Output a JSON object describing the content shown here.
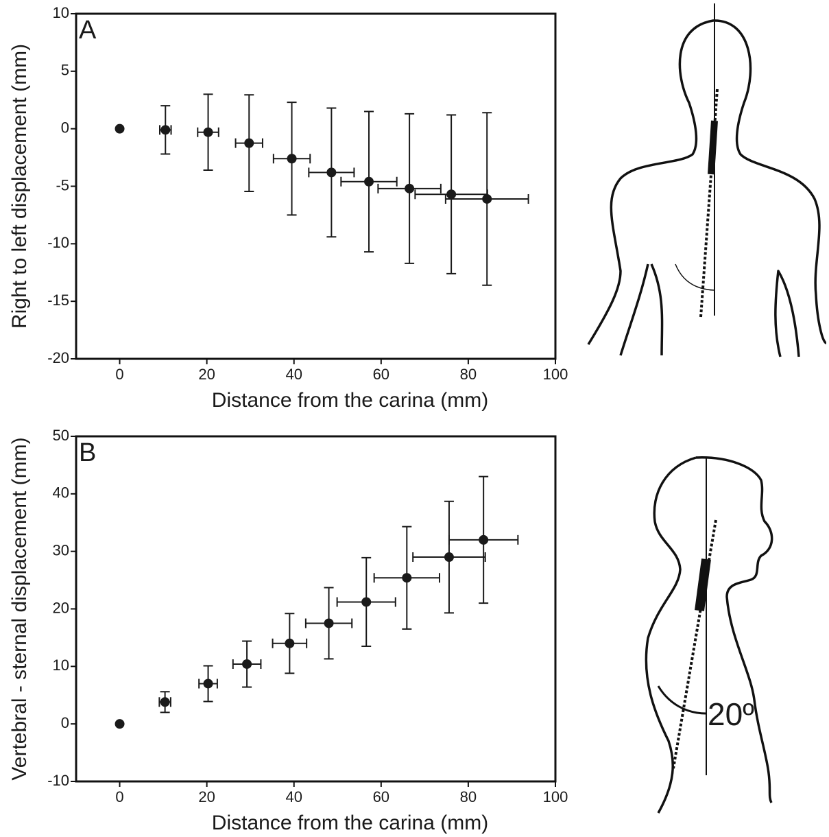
{
  "chart_data": [
    {
      "type": "scatter",
      "panel_label": "A",
      "xlabel": "Distance from the carina (mm)",
      "ylabel": "Right to left displacement (mm)",
      "xlim": [
        -10,
        100
      ],
      "ylim": [
        -20,
        10
      ],
      "xticks": [
        0,
        20,
        40,
        60,
        80,
        100
      ],
      "yticks": [
        -20,
        -15,
        -10,
        -5,
        0,
        5,
        10
      ],
      "color": "#1a1a1a",
      "x": [
        0,
        10.5,
        20.3,
        29.7,
        39.5,
        48.6,
        57.2,
        66.5,
        76.1,
        84.3
      ],
      "values": [
        0,
        -0.1,
        -0.3,
        -1.25,
        -2.6,
        -3.8,
        -4.6,
        -5.2,
        -5.7,
        -6.1
      ],
      "xerr": [
        null,
        1.3,
        2.4,
        3.1,
        4.2,
        5.2,
        6.4,
        7.2,
        8.3,
        9.5
      ],
      "yerr": [
        null,
        2.1,
        3.3,
        4.2,
        4.9,
        5.6,
        6.1,
        6.5,
        6.9,
        7.5
      ]
    },
    {
      "type": "scatter",
      "panel_label": "B",
      "xlabel": "Distance from the carina (mm)",
      "ylabel": "Vertebral - sternal displacement (mm)",
      "xlim": [
        -10,
        100
      ],
      "ylim": [
        -10,
        50
      ],
      "xticks": [
        0,
        20,
        40,
        60,
        80,
        100
      ],
      "yticks": [
        -10,
        0,
        10,
        20,
        30,
        40,
        50
      ],
      "color": "#1a1a1a",
      "x": [
        0,
        10.4,
        20.3,
        29.2,
        39.0,
        48.0,
        56.6,
        65.9,
        75.6,
        83.5
      ],
      "values": [
        0,
        3.8,
        7.0,
        10.4,
        14.0,
        17.5,
        21.2,
        25.4,
        29.0,
        32.0
      ],
      "xerr": [
        null,
        1.3,
        2.1,
        3.2,
        3.9,
        5.3,
        6.7,
        7.5,
        8.3,
        7.9
      ],
      "yerr": [
        null,
        1.8,
        3.1,
        4.0,
        5.2,
        6.2,
        7.7,
        8.9,
        9.7,
        11.0
      ]
    }
  ],
  "figure": {
    "angle_label": "20º"
  }
}
